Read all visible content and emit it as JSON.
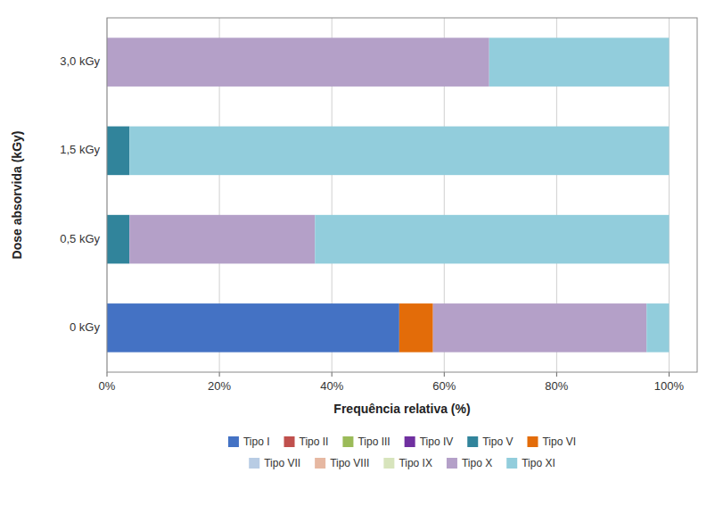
{
  "chart_data": {
    "type": "bar",
    "orientation": "horizontal",
    "stacked": true,
    "xlabel": "Frequência relativa (%)",
    "ylabel": "Dose absorvida (kGy)",
    "categories": [
      "0 kGy",
      "0,5 kGy",
      "1,5 kGy",
      "3,0 kGy"
    ],
    "series": [
      {
        "name": "Tipo I",
        "color": "#4472c4",
        "values": [
          52,
          0,
          0,
          0
        ]
      },
      {
        "name": "Tipo II",
        "color": "#c0504d",
        "values": [
          0,
          0,
          0,
          0
        ]
      },
      {
        "name": "Tipo III",
        "color": "#9bbb59",
        "values": [
          0,
          0,
          0,
          0
        ]
      },
      {
        "name": "Tipo IV",
        "color": "#7030a0",
        "values": [
          0,
          0,
          0,
          0
        ]
      },
      {
        "name": "Tipo V",
        "color": "#31849b",
        "values": [
          0,
          4,
          4,
          0
        ]
      },
      {
        "name": "Tipo VI",
        "color": "#e36c09",
        "values": [
          6,
          0,
          0,
          0
        ]
      },
      {
        "name": "Tipo VII",
        "color": "#b8cce4",
        "values": [
          0,
          0,
          0,
          0
        ]
      },
      {
        "name": "Tipo VIII",
        "color": "#e6b8a2",
        "values": [
          0,
          0,
          0,
          0
        ]
      },
      {
        "name": "Tipo IX",
        "color": "#d7e4bc",
        "values": [
          0,
          0,
          0,
          0
        ]
      },
      {
        "name": "Tipo X",
        "color": "#b4a0c8",
        "values": [
          38,
          33,
          0,
          68
        ]
      },
      {
        "name": "Tipo XI",
        "color": "#92cddc",
        "values": [
          4,
          63,
          96,
          32
        ]
      }
    ],
    "xlim": [
      0,
      105
    ],
    "xticks": [
      {
        "value": 0,
        "label": "0%"
      },
      {
        "value": 20,
        "label": "20%"
      },
      {
        "value": 40,
        "label": "40%"
      },
      {
        "value": 60,
        "label": "60%"
      },
      {
        "value": 80,
        "label": "80%"
      },
      {
        "value": 100,
        "label": "100%"
      }
    ],
    "grid": true,
    "legend": "bottom"
  }
}
